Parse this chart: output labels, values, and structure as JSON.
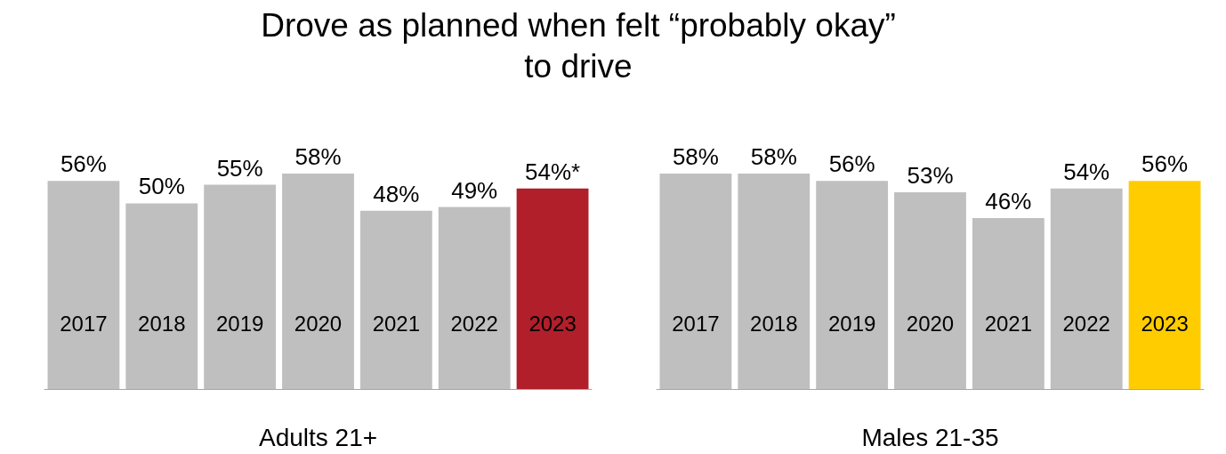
{
  "chart_data": [
    {
      "type": "bar",
      "title": "Drove as planned when felt “probably okay” to drive",
      "xlabel": "Adults 21+",
      "categories": [
        "2017",
        "2018",
        "2019",
        "2020",
        "2021",
        "2022",
        "2023"
      ],
      "values": [
        56,
        50,
        55,
        58,
        48,
        49,
        54
      ],
      "colors": [
        "#bfbfbf",
        "#bfbfbf",
        "#bfbfbf",
        "#bfbfbf",
        "#bfbfbf",
        "#bfbfbf",
        "#b01f2a"
      ],
      "value_labels": [
        "56%",
        "50%",
        "55%",
        "58%",
        "48%",
        "49%",
        "54%*"
      ]
    },
    {
      "type": "bar",
      "xlabel": "Males 21-35",
      "categories": [
        "2017",
        "2018",
        "2019",
        "2020",
        "2021",
        "2022",
        "2023"
      ],
      "values": [
        58,
        58,
        56,
        53,
        46,
        54,
        56
      ],
      "colors": [
        "#bfbfbf",
        "#bfbfbf",
        "#bfbfbf",
        "#bfbfbf",
        "#bfbfbf",
        "#bfbfbf",
        "#ffcc00"
      ],
      "value_labels": [
        "58%",
        "58%",
        "56%",
        "53%",
        "46%",
        "54%",
        "56%"
      ]
    }
  ]
}
